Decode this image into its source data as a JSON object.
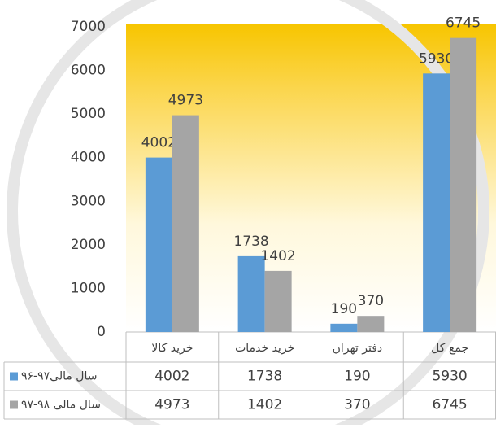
{
  "chart_data": {
    "type": "bar",
    "categories": [
      "خرید کالا",
      "خرید خدمات",
      "دفتر تهران",
      "جمع کل"
    ],
    "series": [
      {
        "name": "سال مالی۹۷-۹۶",
        "color": "#5b9bd5",
        "values": [
          4002,
          1738,
          190,
          5930
        ]
      },
      {
        "name": "سال مالی ۹۸-۹۷",
        "color": "#a5a5a5",
        "values": [
          4973,
          1402,
          370,
          6745
        ]
      }
    ],
    "ylim": [
      0,
      7000
    ],
    "yticks": [
      0,
      1000,
      2000,
      3000,
      4000,
      5000,
      6000,
      7000
    ],
    "grid": false
  }
}
